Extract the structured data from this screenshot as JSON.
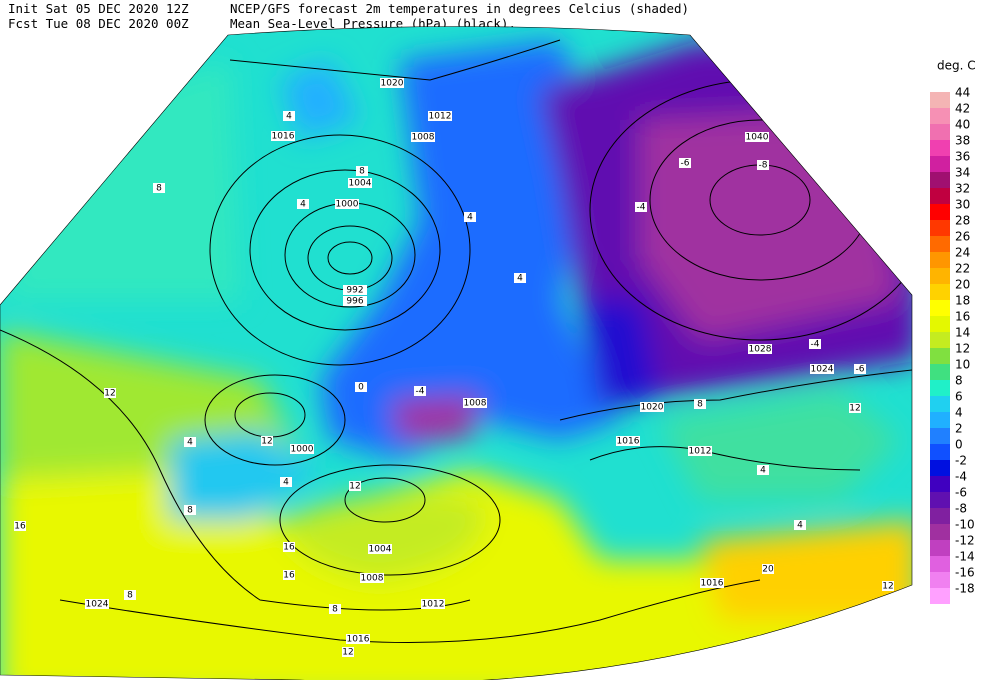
{
  "header": {
    "init": "Init  Sat 05 DEC 2020 12Z",
    "fcst": "Fcst Tue 08 DEC 2020 00Z",
    "title1": "NCEP/GFS forecast 2m temperatures in degrees Celcius (shaded)",
    "title2": "Mean Sea-Level Pressure (hPa) (black)."
  },
  "legend": {
    "title": "deg. C",
    "labels": [
      44,
      42,
      40,
      38,
      36,
      34,
      32,
      30,
      28,
      26,
      24,
      22,
      20,
      18,
      16,
      14,
      12,
      10,
      8,
      6,
      4,
      2,
      0,
      -2,
      -4,
      -6,
      -8,
      -10,
      -12,
      -14,
      -16,
      -18
    ],
    "colors": [
      "#f4b4b4",
      "#f690b4",
      "#f070b0",
      "#f040b0",
      "#d020a0",
      "#a01070",
      "#c00040",
      "#ff0000",
      "#ff3800",
      "#ff6a00",
      "#ff9600",
      "#ffb400",
      "#ffd200",
      "#ffff00",
      "#e4f800",
      "#c4ec20",
      "#80e040",
      "#40e080",
      "#20f0c8",
      "#20d0f0",
      "#20b0ff",
      "#2080ff",
      "#1050ff",
      "#0010e0",
      "#4000c0",
      "#6010b0",
      "#8020a0",
      "#a030a0",
      "#c040c0",
      "#e060e0",
      "#f080f0",
      "#ffa0ff"
    ]
  },
  "map": {
    "isobar_labels": [
      1020,
      1012,
      1016,
      1008,
      1004,
      1000,
      992,
      996,
      1040,
      1028,
      1024,
      1020,
      1016,
      1012,
      1000,
      1004,
      1008,
      1012,
      1016,
      1024,
      1016,
      1008
    ],
    "temperature_labels": [
      8,
      12,
      16,
      4,
      4,
      8,
      -6,
      -8,
      -4,
      4,
      4,
      12,
      12,
      16,
      16,
      20,
      12,
      4,
      4,
      8,
      12,
      -4,
      -6,
      0,
      -4,
      4,
      4,
      8,
      8,
      12,
      8
    ]
  }
}
